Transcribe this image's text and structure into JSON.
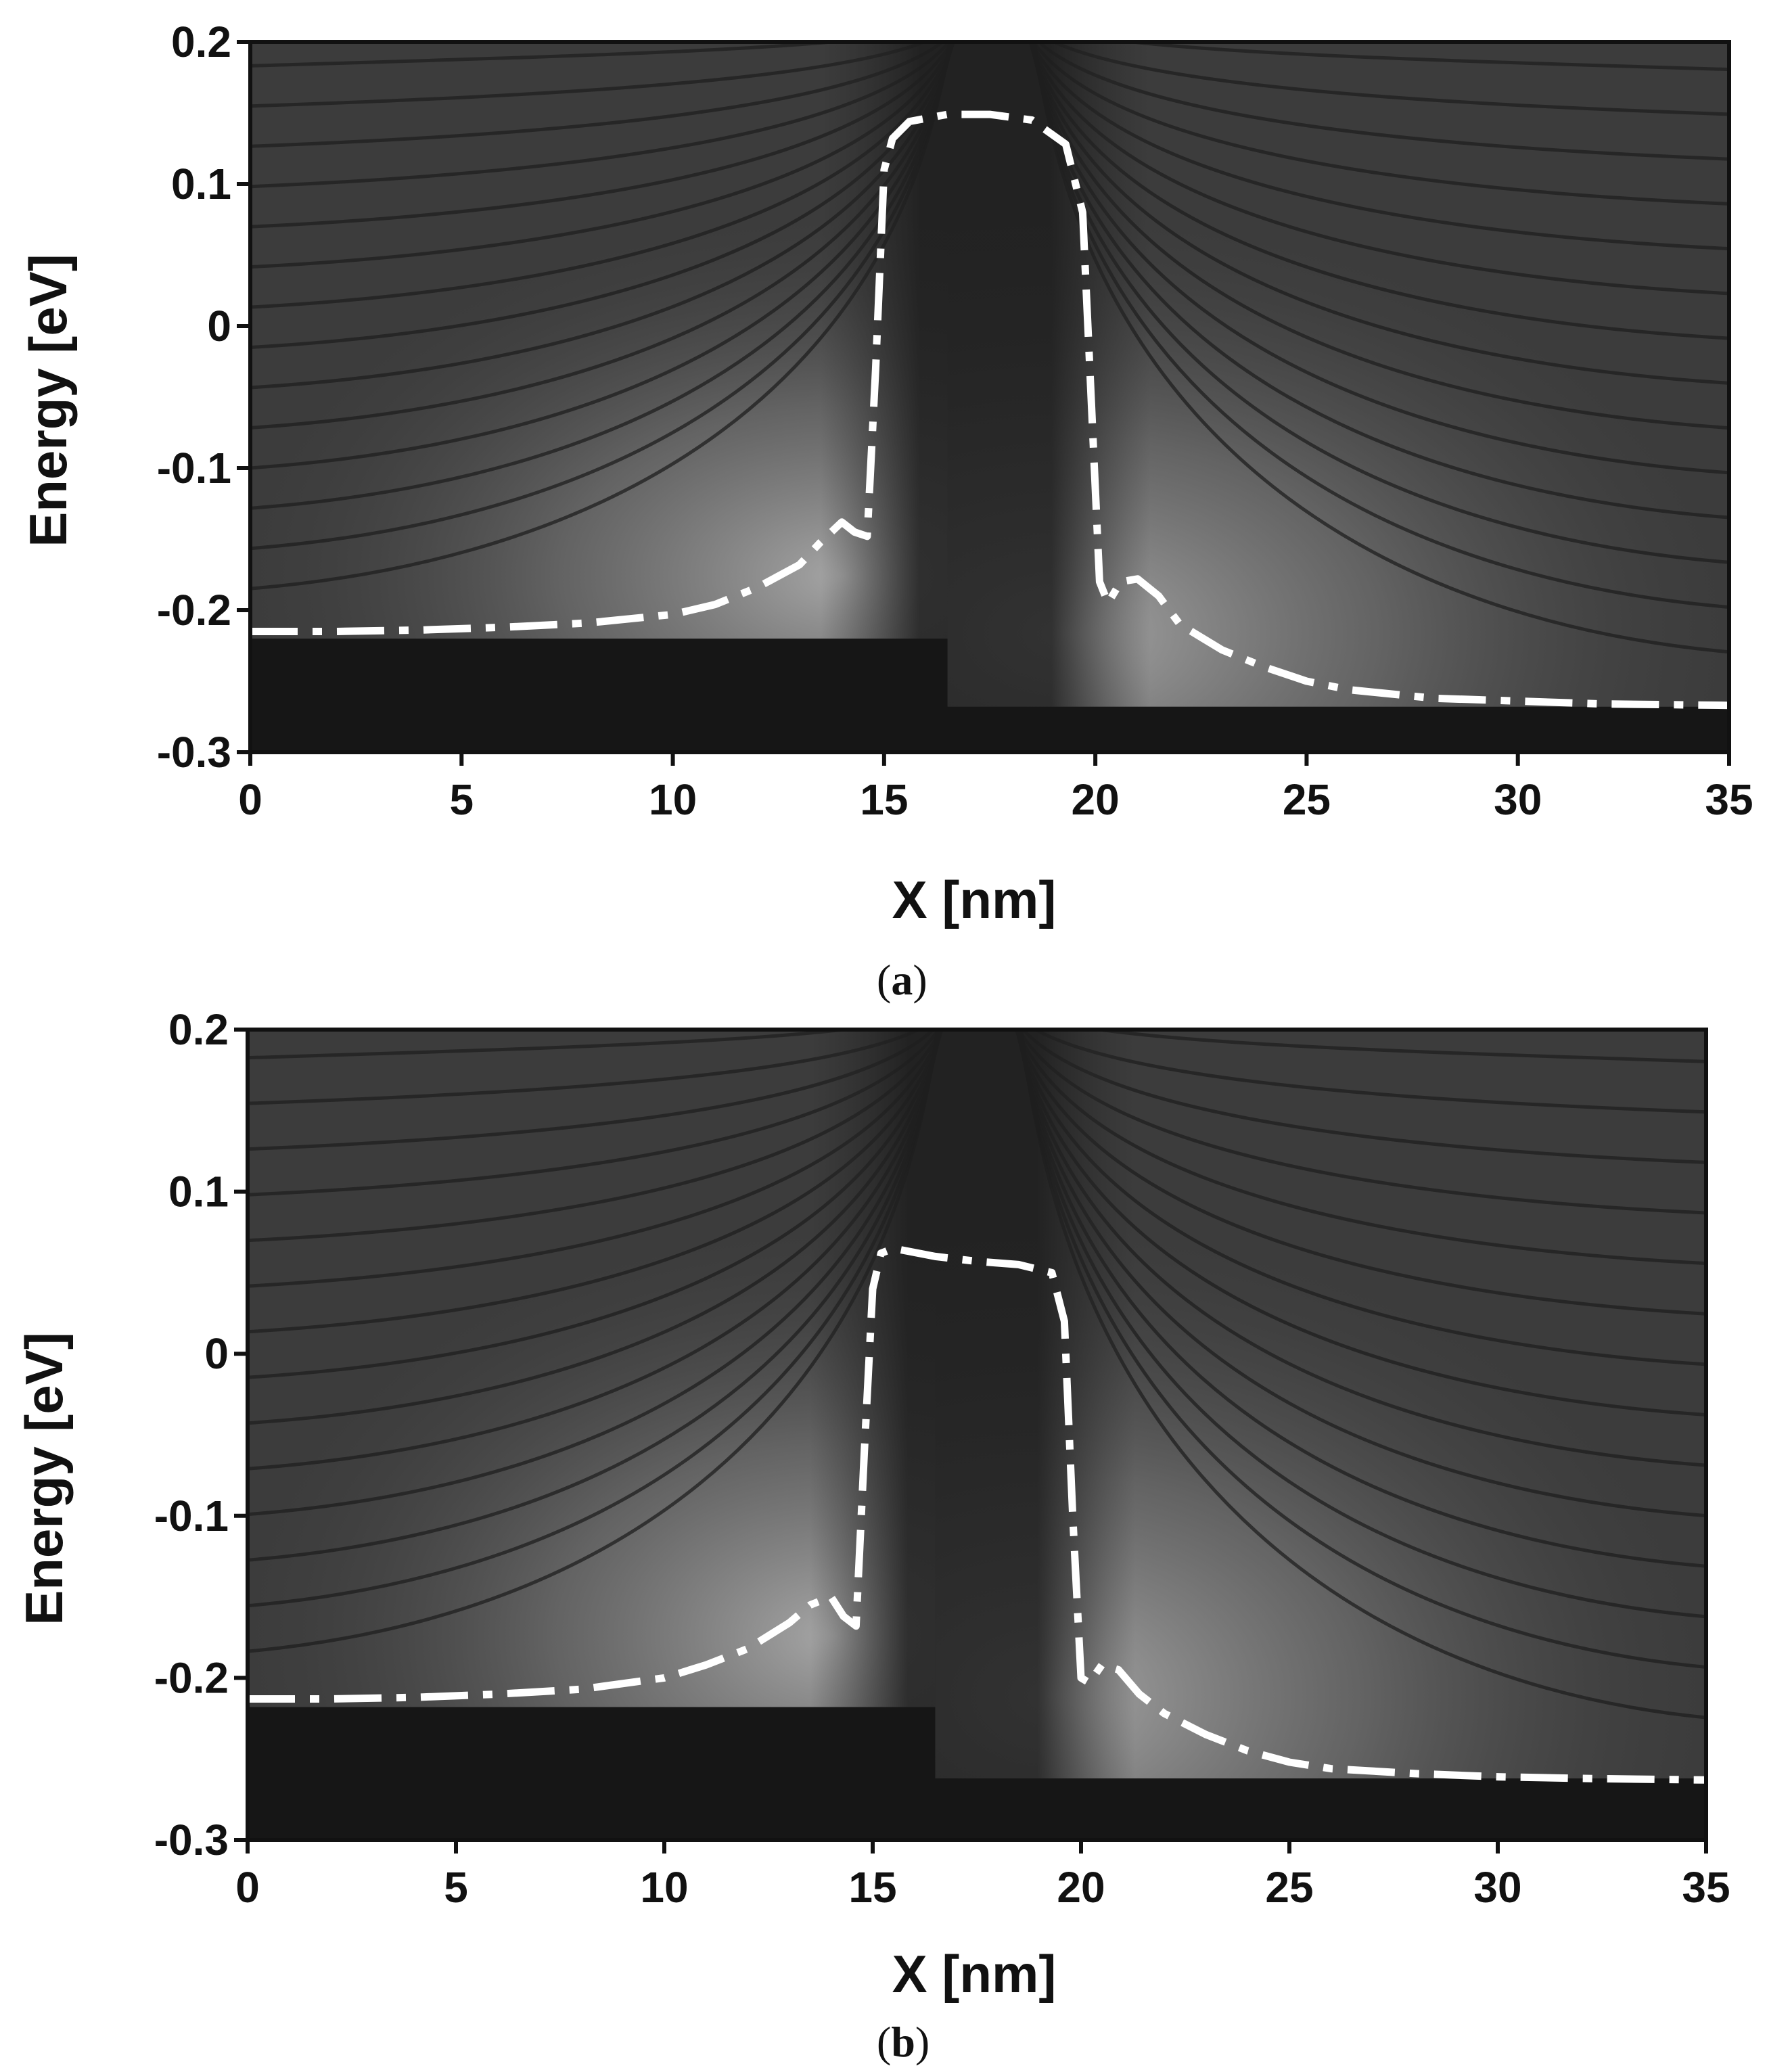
{
  "chart_data": [
    {
      "type": "heatmap",
      "panel_label": "a",
      "xlabel": "X [nm]",
      "ylabel": "Energy [eV]",
      "xlim": [
        0,
        35
      ],
      "ylim": [
        -0.3,
        0.2
      ],
      "xticks": [
        0,
        5,
        10,
        15,
        20,
        25,
        30,
        35
      ],
      "yticks": [
        0.2,
        0.1,
        0,
        -0.1,
        -0.2,
        -0.3
      ],
      "xtick_labels": [
        "0",
        "5",
        "10",
        "15",
        "20",
        "25",
        "30",
        "35"
      ],
      "ytick_labels": [
        "0.2",
        "0.1",
        "0",
        "-0.1",
        "-0.2",
        "-0.3"
      ],
      "colormap": "grayscale local density of states",
      "band_edge": {
        "left": -0.22,
        "right": -0.268,
        "step_at": 16.5
      },
      "series": [
        {
          "style": "white dash-dot",
          "x": [
            0,
            2,
            4,
            6,
            8,
            10,
            11,
            12,
            13,
            13.5,
            14,
            14.3,
            14.6,
            14.8,
            15.0,
            15.2,
            15.6,
            16.5,
            17.5,
            18.5,
            19.3,
            19.7,
            19.9,
            20.1,
            20.3,
            20.6,
            21.0,
            21.5,
            22,
            23,
            24,
            25,
            26,
            28,
            30,
            32,
            35
          ],
          "y": [
            -0.215,
            -0.215,
            -0.214,
            -0.212,
            -0.209,
            -0.203,
            -0.196,
            -0.184,
            -0.168,
            -0.152,
            -0.138,
            -0.145,
            -0.148,
            -0.03,
            0.11,
            0.132,
            0.144,
            0.149,
            0.149,
            0.145,
            0.128,
            0.08,
            -0.05,
            -0.18,
            -0.195,
            -0.18,
            -0.178,
            -0.19,
            -0.21,
            -0.228,
            -0.24,
            -0.25,
            -0.256,
            -0.262,
            -0.264,
            -0.266,
            -0.267
          ]
        }
      ]
    },
    {
      "type": "heatmap",
      "panel_label": "b",
      "xlabel": "X [nm]",
      "ylabel": "Energy [eV]",
      "xlim": [
        0,
        35
      ],
      "ylim": [
        -0.3,
        0.2
      ],
      "xticks": [
        0,
        5,
        10,
        15,
        20,
        25,
        30,
        35
      ],
      "yticks": [
        0.2,
        0.1,
        0,
        -0.1,
        -0.2,
        -0.3
      ],
      "xtick_labels": [
        "0",
        "5",
        "10",
        "15",
        "20",
        "25",
        "30",
        "35"
      ],
      "ytick_labels": [
        "0.2",
        "0.1",
        "0",
        "-0.1",
        "-0.2",
        "-0.3"
      ],
      "colormap": "grayscale local density of states",
      "band_edge": {
        "left": -0.218,
        "right": -0.262,
        "step_at": 16.5
      },
      "series": [
        {
          "style": "white dash-dot",
          "x": [
            0,
            2,
            4,
            6,
            8,
            10,
            11,
            12,
            13,
            13.5,
            14,
            14.3,
            14.6,
            14.8,
            15.0,
            15.2,
            15.5,
            16.5,
            17.5,
            18.5,
            19.3,
            19.6,
            19.8,
            20.0,
            20.2,
            20.5,
            20.9,
            21.4,
            22,
            23,
            24,
            25,
            26,
            28,
            30,
            32,
            35
          ],
          "y": [
            -0.213,
            -0.213,
            -0.212,
            -0.21,
            -0.207,
            -0.2,
            -0.192,
            -0.182,
            -0.166,
            -0.155,
            -0.15,
            -0.162,
            -0.168,
            -0.06,
            0.04,
            0.062,
            0.065,
            0.06,
            0.057,
            0.055,
            0.05,
            0.02,
            -0.1,
            -0.2,
            -0.203,
            -0.192,
            -0.195,
            -0.21,
            -0.222,
            -0.235,
            -0.245,
            -0.252,
            -0.256,
            -0.259,
            -0.261,
            -0.262,
            -0.263
          ]
        }
      ]
    }
  ]
}
